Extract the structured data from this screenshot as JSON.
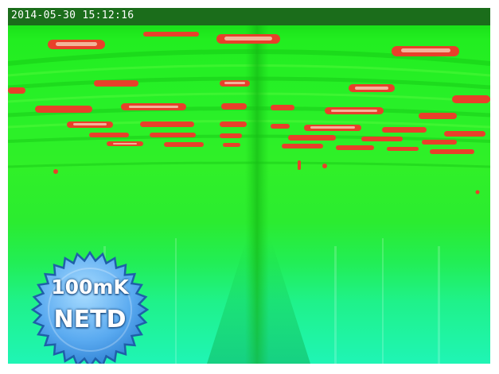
{
  "overlay": {
    "timestamp": "2014-05-30 15:12:16"
  },
  "badge": {
    "line1": "100mK",
    "line2": "NETD"
  },
  "colors": {
    "hot_spot": "#e8402a",
    "warm_core": "#f3b49a",
    "background_top": "#22ee20",
    "background_bottom": "#1ff5b5",
    "badge_fill": "#5aaaf0",
    "timestamp_bar": "#1b6d1b"
  }
}
